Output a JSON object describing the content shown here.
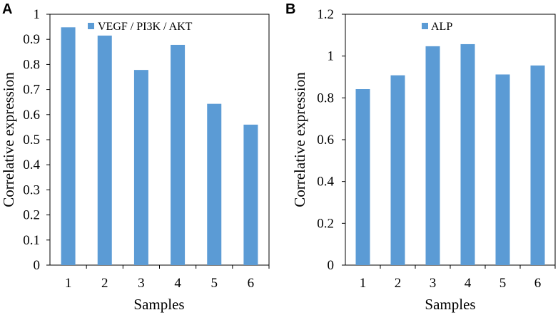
{
  "chart_data": [
    {
      "panel": "A",
      "type": "bar",
      "categories": [
        "1",
        "2",
        "3",
        "4",
        "5",
        "6"
      ],
      "values": [
        0.948,
        0.915,
        0.778,
        0.878,
        0.643,
        0.56
      ],
      "series_name": "VEGF / PI3K / AKT",
      "xlabel": "Samples",
      "ylabel": "Correlative expression",
      "ylim": [
        0,
        1
      ],
      "yticks": [
        "0",
        "0.1",
        "0.2",
        "0.3",
        "0.4",
        "0.5",
        "0.6",
        "0.7",
        "0.8",
        "0.9",
        "1"
      ],
      "grid": false,
      "legend": "top-left",
      "color": "#5b9bd5"
    },
    {
      "panel": "B",
      "type": "bar",
      "categories": [
        "1",
        "2",
        "3",
        "4",
        "5",
        "6"
      ],
      "values": [
        0.842,
        0.908,
        1.047,
        1.057,
        0.912,
        0.955
      ],
      "series_name": "ALP",
      "xlabel": "Samples",
      "ylabel": "Correlative expression",
      "ylim": [
        0,
        1.2
      ],
      "yticks": [
        "0",
        "0.2",
        "0.4",
        "0.6",
        "0.8",
        "1",
        "1.2"
      ],
      "grid": false,
      "legend": "top-center",
      "color": "#5b9bd5"
    }
  ]
}
